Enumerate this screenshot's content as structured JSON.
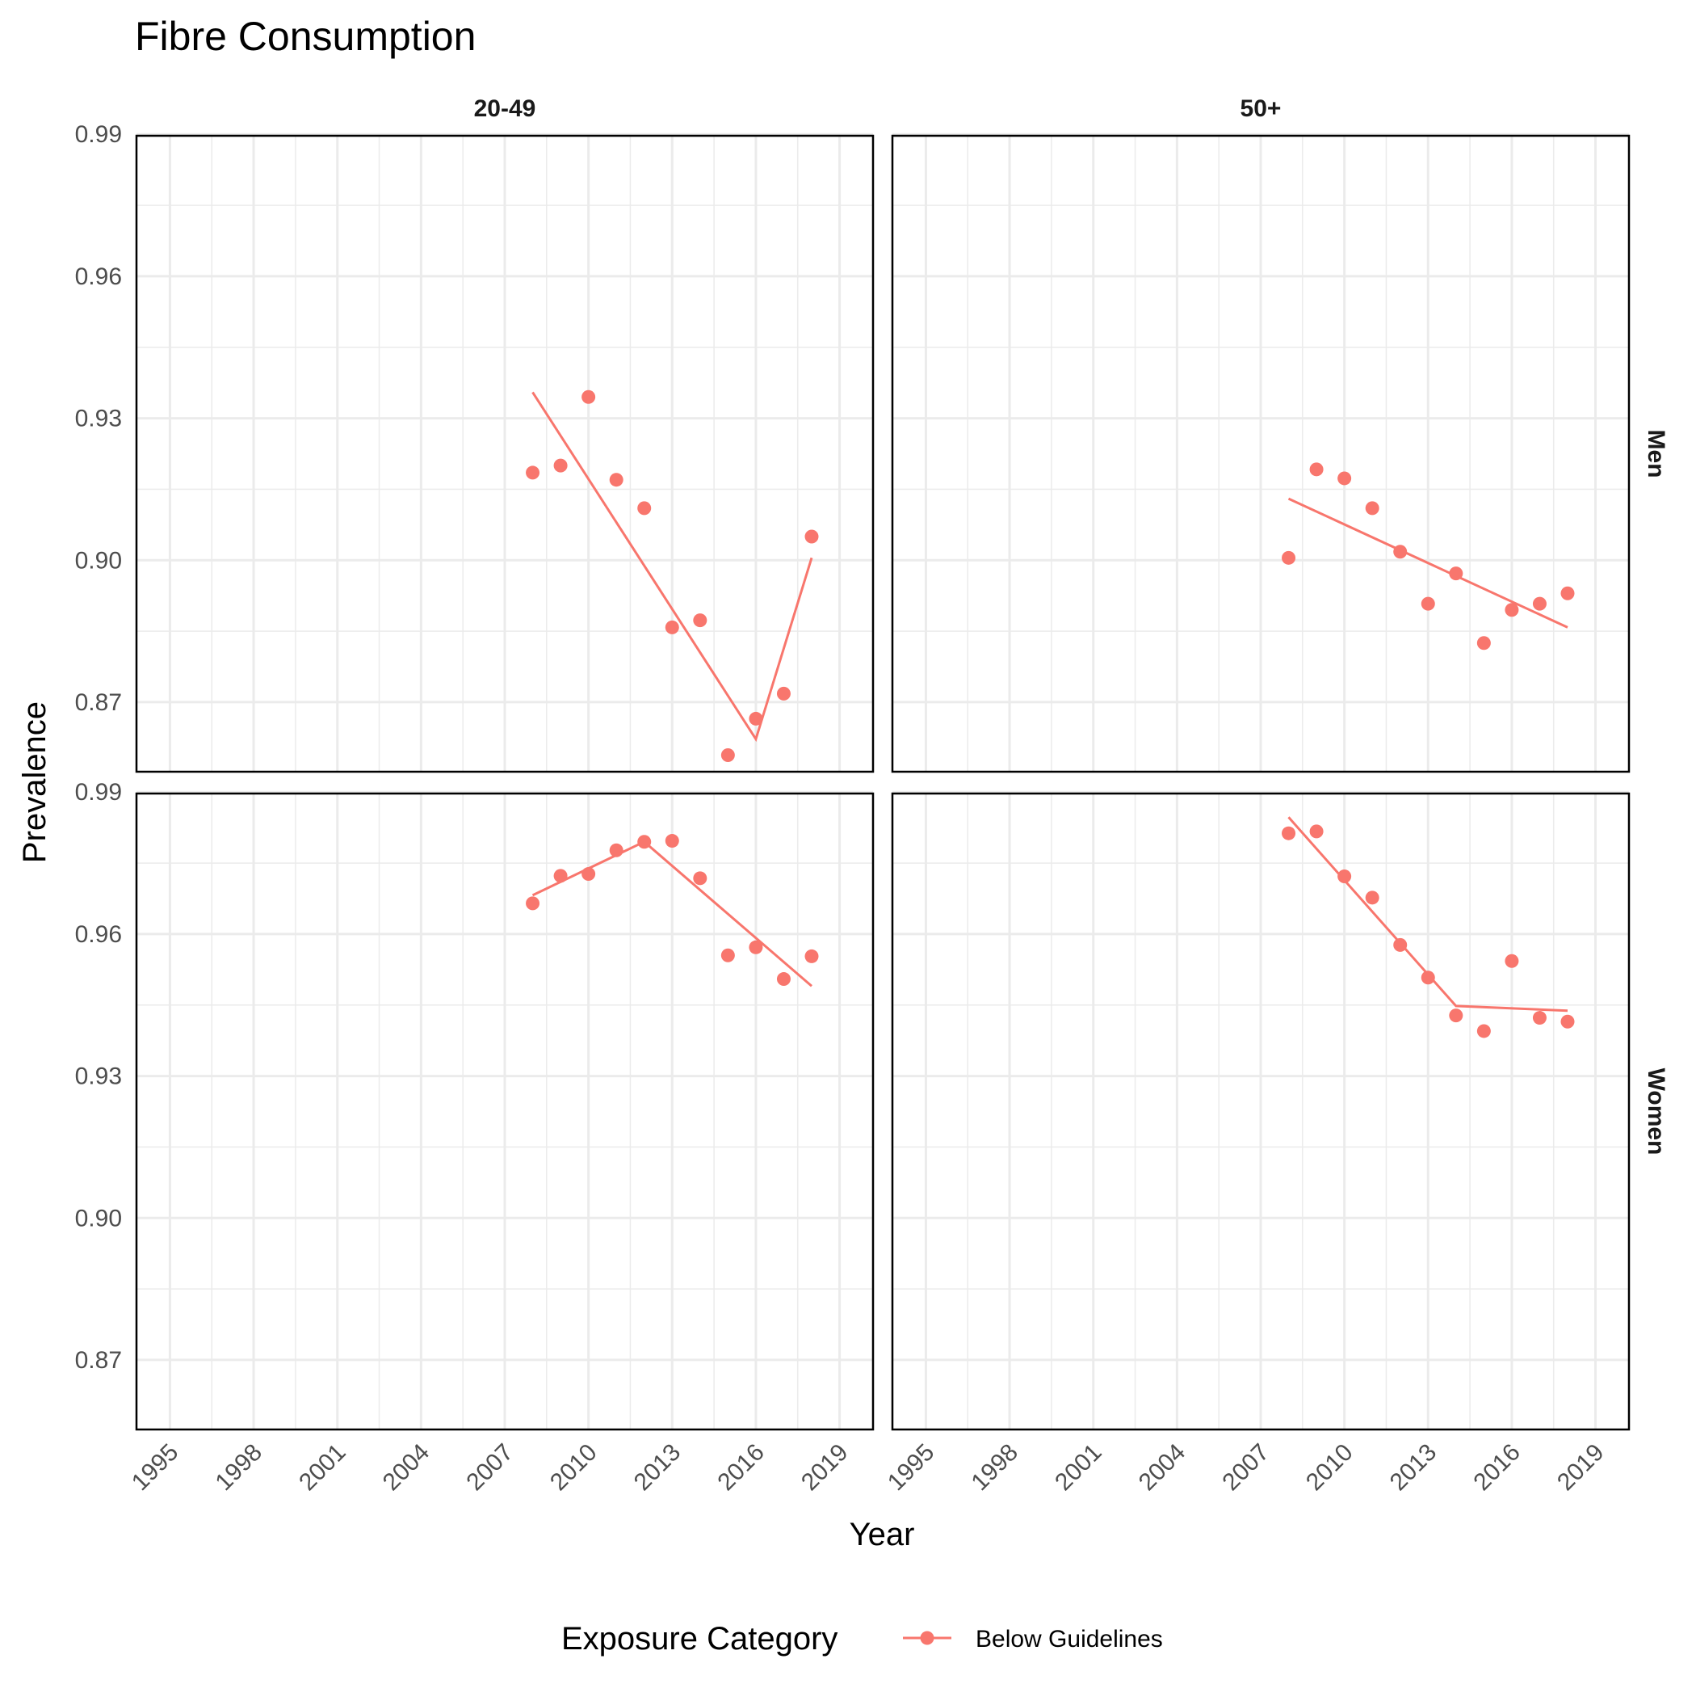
{
  "chart_data": {
    "type": "line",
    "title": "Fibre Consumption",
    "xlabel": "Year",
    "ylabel": "Prevalence",
    "x_ticks": [
      "1995",
      "1998",
      "2001",
      "2004",
      "2007",
      "2010",
      "2013",
      "2016",
      "2019"
    ],
    "x_tick_values": [
      1995,
      1998,
      2001,
      2004,
      2007,
      2010,
      2013,
      2016,
      2019
    ],
    "xlim": [
      1993.8,
      2020.2
    ],
    "y_ticks": [
      "0.87",
      "0.90",
      "0.93",
      "0.96",
      "0.99"
    ],
    "y_tick_values": [
      0.87,
      0.9,
      0.93,
      0.96,
      0.99
    ],
    "ylim": [
      0.8553,
      0.9897
    ],
    "column_facets": [
      "20-49",
      "50+"
    ],
    "row_facets": [
      "Men",
      "Women"
    ],
    "legend": {
      "title": "Exposure Category",
      "position": "bottom",
      "entries": [
        {
          "label": "Below Guidelines",
          "color": "#F8766D"
        }
      ]
    },
    "grid": true,
    "panels": [
      {
        "column": "20-49",
        "row": "Men",
        "points": [
          [
            2008,
            0.9185
          ],
          [
            2009,
            0.92
          ],
          [
            2010,
            0.9345
          ],
          [
            2011,
            0.917
          ],
          [
            2012,
            0.911
          ],
          [
            2013,
            0.8858
          ],
          [
            2014,
            0.8873
          ],
          [
            2015,
            0.8588
          ],
          [
            2016,
            0.8665
          ],
          [
            2017,
            0.8718
          ],
          [
            2018,
            0.905
          ]
        ],
        "trend": [
          [
            2008,
            0.9355
          ],
          [
            2016,
            0.8622
          ],
          [
            2018,
            0.9005
          ]
        ]
      },
      {
        "column": "50+",
        "row": "Men",
        "points": [
          [
            2008,
            0.9005
          ],
          [
            2009,
            0.9192
          ],
          [
            2010,
            0.9173
          ],
          [
            2011,
            0.911
          ],
          [
            2012,
            0.9018
          ],
          [
            2013,
            0.8908
          ],
          [
            2014,
            0.8972
          ],
          [
            2015,
            0.8825
          ],
          [
            2016,
            0.8895
          ],
          [
            2017,
            0.8908
          ],
          [
            2018,
            0.893
          ]
        ],
        "trend": [
          [
            2008,
            0.913
          ],
          [
            2018,
            0.8858
          ]
        ]
      },
      {
        "column": "20-49",
        "row": "Women",
        "points": [
          [
            2008,
            0.9665
          ],
          [
            2009,
            0.9723
          ],
          [
            2010,
            0.9727
          ],
          [
            2011,
            0.9777
          ],
          [
            2012,
            0.9795
          ],
          [
            2013,
            0.9797
          ],
          [
            2014,
            0.9718
          ],
          [
            2015,
            0.9555
          ],
          [
            2016,
            0.9572
          ],
          [
            2017,
            0.9505
          ],
          [
            2018,
            0.9553
          ]
        ],
        "trend": [
          [
            2008,
            0.9682
          ],
          [
            2012,
            0.9795
          ],
          [
            2018,
            0.949
          ]
        ]
      },
      {
        "column": "50+",
        "row": "Women",
        "points": [
          [
            2008,
            0.9813
          ],
          [
            2009,
            0.9817
          ],
          [
            2010,
            0.9722
          ],
          [
            2011,
            0.9677
          ],
          [
            2012,
            0.9577
          ],
          [
            2013,
            0.9508
          ],
          [
            2014,
            0.9428
          ],
          [
            2015,
            0.9395
          ],
          [
            2016,
            0.9543
          ],
          [
            2017,
            0.9423
          ],
          [
            2018,
            0.9415
          ]
        ],
        "trend": [
          [
            2008,
            0.9847
          ],
          [
            2014,
            0.9448
          ],
          [
            2018,
            0.9438
          ]
        ]
      }
    ]
  }
}
